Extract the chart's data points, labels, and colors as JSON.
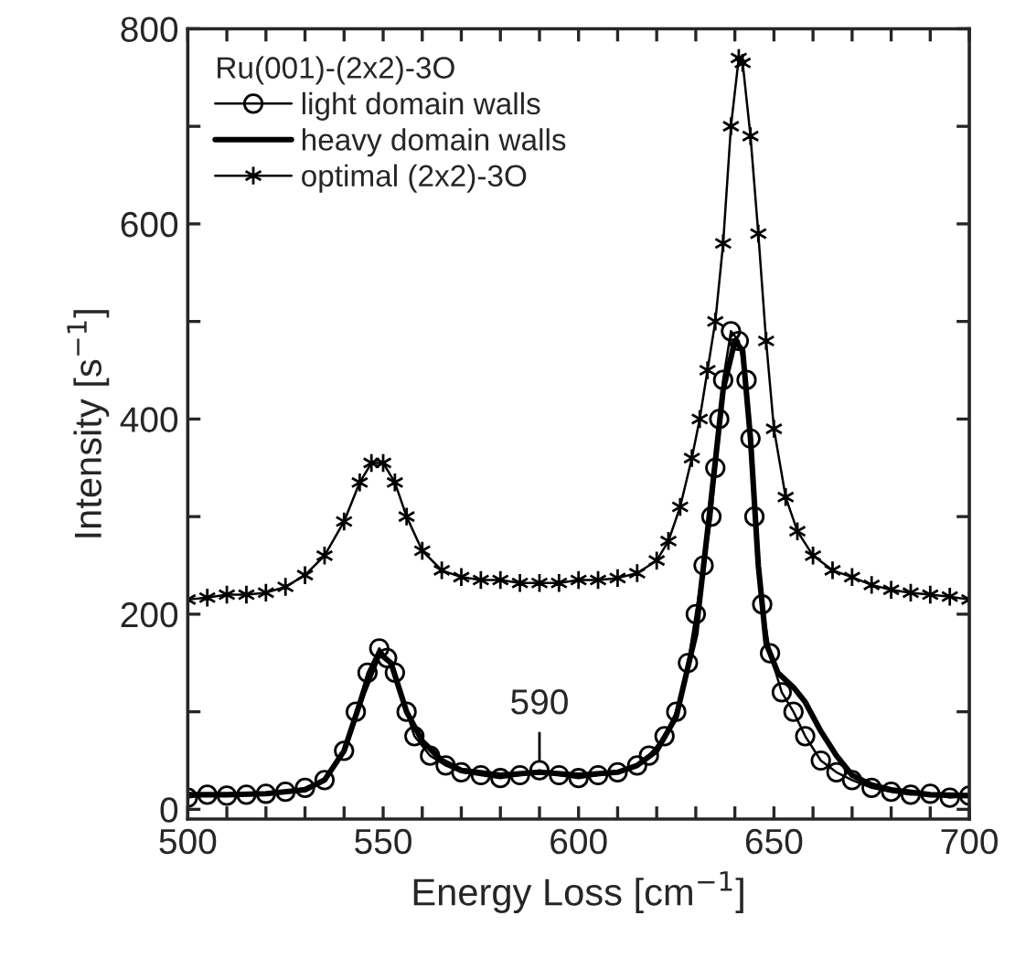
{
  "chart_data": {
    "type": "line",
    "xlabel": "Energy Loss [cm$^{−1}$]",
    "ylabel": "Intensity [s$^{−1}$]",
    "legend_title": "Ru(001)-(2x2)-3O",
    "legend": "top left",
    "grid": false,
    "xlim": [
      500,
      700
    ],
    "ylim": [
      -10,
      800
    ],
    "xticks": [
      500,
      {
        "value": 510,
        "label": null
      },
      {
        "value": 520,
        "label": null
      },
      {
        "value": 530,
        "label": null
      },
      {
        "value": 540,
        "label": null
      },
      550,
      {
        "value": 560,
        "label": null
      },
      {
        "value": 570,
        "label": null
      },
      {
        "value": 580,
        "label": null
      },
      {
        "value": 590,
        "label": null
      },
      600,
      {
        "value": 610,
        "label": null
      },
      {
        "value": 620,
        "label": null
      },
      {
        "value": 630,
        "label": null
      },
      {
        "value": 640,
        "label": null
      },
      650,
      {
        "value": 660,
        "label": null
      },
      {
        "value": 670,
        "label": null
      },
      {
        "value": 680,
        "label": null
      },
      {
        "value": 690,
        "label": null
      },
      700
    ],
    "yticks": [
      0,
      {
        "value": 100,
        "label": null
      },
      200,
      {
        "value": 300,
        "label": null
      },
      400,
      {
        "value": 500,
        "label": null
      },
      600,
      {
        "value": 700,
        "label": null
      },
      800
    ],
    "annotations": [
      {
        "text": "590",
        "x": 590,
        "y": 45
      }
    ],
    "series": [
      {
        "name": "light domain walls",
        "color": "#000000",
        "marker": "circle",
        "line_style": "solid",
        "x": [
          500,
          505,
          510,
          515,
          520,
          525,
          530,
          535,
          540,
          543,
          546,
          549,
          551,
          553,
          556,
          558,
          562,
          566,
          570,
          575,
          580,
          585,
          590,
          595,
          600,
          605,
          610,
          615,
          618,
          622,
          625,
          628,
          630,
          632,
          634,
          635,
          636,
          637,
          639,
          641,
          643,
          644,
          645,
          647,
          649,
          652,
          655,
          658,
          662,
          666,
          670,
          675,
          680,
          685,
          690,
          695,
          700
        ],
        "values": [
          12,
          15,
          14,
          15,
          16,
          18,
          22,
          30,
          60,
          100,
          140,
          165,
          155,
          140,
          100,
          75,
          55,
          45,
          38,
          35,
          32,
          35,
          40,
          35,
          32,
          35,
          38,
          45,
          55,
          75,
          100,
          150,
          200,
          250,
          300,
          350,
          400,
          440,
          490,
          480,
          440,
          380,
          300,
          210,
          160,
          120,
          100,
          75,
          50,
          38,
          30,
          22,
          18,
          15,
          16,
          12,
          14
        ]
      },
      {
        "name": "heavy domain walls",
        "color": "#000000",
        "marker": "none",
        "line_style": "solid",
        "x": [
          500,
          510,
          520,
          530,
          535,
          540,
          545,
          549,
          552,
          556,
          560,
          565,
          570,
          580,
          590,
          600,
          610,
          615,
          620,
          625,
          630,
          634,
          637,
          640,
          642,
          644,
          646,
          648,
          651,
          655,
          658,
          662,
          666,
          670,
          675,
          680,
          690,
          700
        ],
        "values": [
          15,
          15,
          16,
          20,
          30,
          60,
          120,
          160,
          150,
          100,
          70,
          50,
          40,
          35,
          38,
          35,
          38,
          45,
          60,
          95,
          180,
          320,
          430,
          480,
          470,
          380,
          250,
          170,
          140,
          125,
          110,
          80,
          55,
          35,
          25,
          20,
          15,
          14
        ]
      },
      {
        "name": "optimal (2x2)-3O",
        "color": "#000000",
        "marker": "cross",
        "line_style": "solid",
        "x": [
          500,
          505,
          510,
          515,
          520,
          525,
          530,
          535,
          540,
          544,
          547,
          550,
          553,
          556,
          560,
          565,
          570,
          575,
          580,
          585,
          590,
          595,
          600,
          605,
          610,
          615,
          620,
          623,
          626,
          629,
          631,
          633,
          635,
          637,
          639,
          641,
          642,
          644,
          646,
          648,
          650,
          653,
          656,
          660,
          665,
          670,
          675,
          680,
          685,
          690,
          695,
          700
        ],
        "values": [
          215,
          217,
          220,
          220,
          222,
          228,
          240,
          260,
          295,
          335,
          355,
          355,
          335,
          300,
          265,
          245,
          238,
          235,
          235,
          232,
          232,
          232,
          235,
          235,
          237,
          242,
          255,
          275,
          310,
          360,
          400,
          450,
          500,
          580,
          700,
          770,
          765,
          690,
          590,
          480,
          390,
          320,
          285,
          260,
          245,
          238,
          230,
          225,
          222,
          220,
          218,
          215
        ]
      }
    ]
  }
}
